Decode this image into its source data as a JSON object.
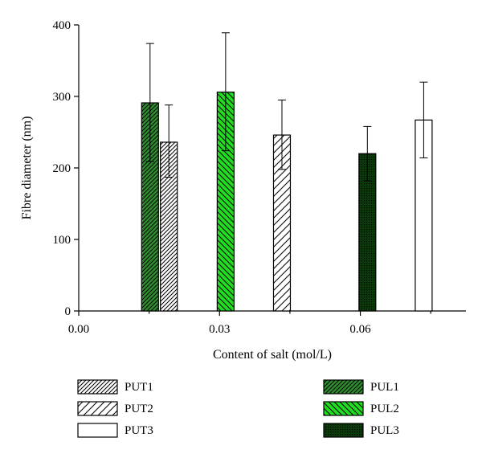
{
  "chart_data": {
    "type": "bar",
    "title": "",
    "xlabel": "Content of salt (mol/L)",
    "ylabel": "Fibre diameter (nm)",
    "xlim": [
      0.0,
      0.0825
    ],
    "ylim": [
      0,
      400
    ],
    "xticks": [
      0.0,
      0.03,
      0.06
    ],
    "xtick_labels": [
      "0.00",
      "0.03",
      "0.06"
    ],
    "yticks": [
      0,
      100,
      200,
      300,
      400
    ],
    "ytick_labels": [
      "0",
      "100",
      "200",
      "300",
      "400"
    ],
    "grid": false,
    "legend_position": "bottom",
    "bars": [
      {
        "series": "PUL1",
        "x": 0.0152,
        "value": 291,
        "err_low": 209,
        "err_high": 374
      },
      {
        "series": "PUT1",
        "x": 0.0192,
        "value": 236,
        "err_low": 187,
        "err_high": 288
      },
      {
        "series": "PUL2",
        "x": 0.0313,
        "value": 306,
        "err_low": 224,
        "err_high": 389
      },
      {
        "series": "PUT2",
        "x": 0.0433,
        "value": 246,
        "err_low": 198,
        "err_high": 295
      },
      {
        "series": "PUL3",
        "x": 0.0615,
        "value": 220,
        "err_low": 182,
        "err_high": 258
      },
      {
        "series": "PUT3",
        "x": 0.0735,
        "value": 267,
        "err_low": 214,
        "err_high": 320
      }
    ],
    "legend": [
      {
        "name": "PUT1",
        "pattern": "dense-diagonal-hatch",
        "fill": "#ffffff"
      },
      {
        "name": "PUT2",
        "pattern": "wide-diagonal-hatch",
        "fill": "#ffffff"
      },
      {
        "name": "PUT3",
        "pattern": "none",
        "fill": "#ffffff"
      },
      {
        "name": "PUL1",
        "pattern": "dense-diagonal-hatch",
        "fill": "#2f8f2f"
      },
      {
        "name": "PUL2",
        "pattern": "back-diagonal-hatch",
        "fill": "#22dd22"
      },
      {
        "name": "PUL3",
        "pattern": "dots",
        "fill": "#0b3b0b"
      }
    ]
  }
}
